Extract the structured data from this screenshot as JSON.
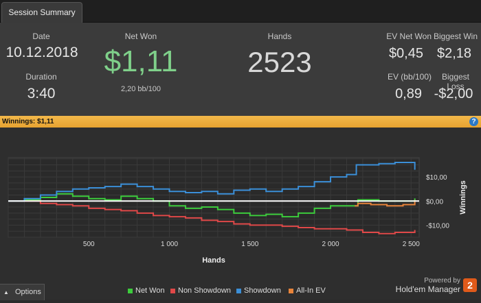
{
  "tab": {
    "label": "Session Summary"
  },
  "summary": {
    "date_label": "Date",
    "date": "10.12.2018",
    "duration_label": "Duration",
    "duration": "3:40",
    "netwon_label": "Net Won",
    "netwon": "$1,11",
    "bb100": "2,20 bb/100",
    "hands_label": "Hands",
    "hands": "2523",
    "ev_net_won_label": "EV Net Won",
    "ev_net_won": "$0,45",
    "biggest_win_label": "Biggest Win",
    "biggest_win": "$2,18",
    "ev_bb100_label": "EV (bb/100)",
    "ev_bb100": "0,89",
    "biggest_loss_label": "Biggest Loss",
    "biggest_loss": "-$2,00",
    "netwon_color": "#7fd08a"
  },
  "winnings_bar": {
    "label": "Winnings:",
    "value": "$1,11",
    "help": "?"
  },
  "chart_data": {
    "type": "line",
    "xlabel": "Hands",
    "ylabel": "Winnings",
    "xlim": [
      0,
      2550
    ],
    "ylim": [
      -15,
      18
    ],
    "x_ticks": [
      "500",
      "1 000",
      "1 500",
      "2 000",
      "2 500"
    ],
    "x_tick_values": [
      500,
      1000,
      1500,
      2000,
      2500
    ],
    "y_ticks": [
      "$10,00",
      "$0,00",
      "-$10,00"
    ],
    "y_tick_values": [
      10,
      0,
      -10
    ],
    "grid": true,
    "series": [
      {
        "name": "Net Won",
        "color": "#3ccc3c",
        "x": [
          0,
          100,
          200,
          300,
          400,
          500,
          600,
          700,
          800,
          900,
          1000,
          1100,
          1200,
          1300,
          1400,
          1500,
          1600,
          1700,
          1800,
          1900,
          2000,
          2100,
          2150,
          2170,
          2300,
          2400,
          2523
        ],
        "y": [
          0,
          0.5,
          1.5,
          3,
          2,
          1,
          0.5,
          2,
          1,
          0,
          -2,
          -3,
          -2.5,
          -3.5,
          -5,
          -6,
          -5.5,
          -6.5,
          -5,
          -3,
          -2,
          -2,
          -2,
          0.5,
          0,
          0,
          1.11
        ]
      },
      {
        "name": "Non Showdown",
        "color": "#e04848",
        "x": [
          0,
          100,
          200,
          300,
          400,
          500,
          600,
          700,
          800,
          900,
          1000,
          1100,
          1200,
          1300,
          1400,
          1500,
          1600,
          1700,
          1800,
          1900,
          2000,
          2100,
          2200,
          2300,
          2400,
          2523
        ],
        "y": [
          0,
          0,
          -1,
          -1.5,
          -2,
          -3,
          -3.5,
          -4,
          -5,
          -6,
          -6.5,
          -7,
          -8,
          -8.5,
          -9.5,
          -10,
          -10,
          -10.5,
          -11,
          -11.5,
          -11.5,
          -12,
          -13,
          -13.5,
          -13,
          -12
        ]
      },
      {
        "name": "Showdown",
        "color": "#3b8fd8",
        "x": [
          0,
          100,
          200,
          300,
          400,
          500,
          600,
          700,
          800,
          900,
          1000,
          1100,
          1200,
          1300,
          1400,
          1500,
          1600,
          1700,
          1800,
          1900,
          2000,
          2100,
          2150,
          2160,
          2300,
          2400,
          2523
        ],
        "y": [
          0,
          1,
          2.5,
          4,
          5,
          5.5,
          6,
          7,
          6,
          5,
          4,
          3.5,
          4,
          3,
          4.5,
          5,
          4,
          5,
          6,
          8,
          10,
          11,
          11,
          15,
          15.5,
          16,
          13
        ]
      },
      {
        "name": "All-In EV",
        "color": "#e8843a",
        "x": [
          2150,
          2170,
          2250,
          2350,
          2450,
          2523
        ],
        "y": [
          -2,
          -1,
          -1.5,
          -2,
          -1.5,
          0.45
        ]
      }
    ]
  },
  "legend": [
    {
      "label": "Net Won",
      "color": "#3ccc3c"
    },
    {
      "label": "Non Showdown",
      "color": "#e04848"
    },
    {
      "label": "Showdown",
      "color": "#3b8fd8"
    },
    {
      "label": "All-In EV",
      "color": "#e8843a"
    }
  ],
  "options": {
    "label": "Options",
    "icon": "caret-up-icon"
  },
  "branding": {
    "powered_by": "Powered by",
    "product": "Hold'em Manager",
    "badge": "2"
  }
}
